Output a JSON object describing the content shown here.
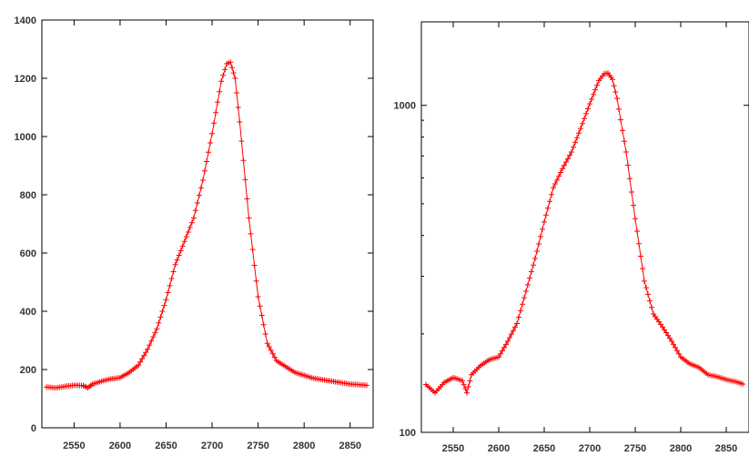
{
  "chart_data": [
    {
      "type": "scatter",
      "marker": "plus",
      "scale_y": "linear",
      "color": "#ff0000",
      "grid": false,
      "xlim": [
        2515,
        2875
      ],
      "ylim": [
        0,
        1400
      ],
      "xticks": [
        2550,
        2600,
        2650,
        2700,
        2750,
        2800,
        2850
      ],
      "xtick_labels": [
        "2550",
        "2600",
        "2650",
        "2700",
        "2750",
        "2800",
        "2850"
      ],
      "yticks": [
        0,
        200,
        400,
        600,
        800,
        1000,
        1200,
        1400
      ],
      "ytick_labels": [
        "0",
        "200",
        "400",
        "600",
        "800",
        "1000",
        "1200",
        "1400"
      ],
      "series": [
        {
          "x": [
            2520,
            2530,
            2540,
            2550,
            2560,
            2565,
            2570,
            2580,
            2590,
            2600,
            2610,
            2620,
            2630,
            2640,
            2650,
            2660,
            2670,
            2680,
            2690,
            2700,
            2710,
            2716,
            2720,
            2725,
            2730,
            2740,
            2750,
            2760,
            2770,
            2780,
            2790,
            2800,
            2810,
            2820,
            2830,
            2840,
            2850,
            2860,
            2870
          ],
          "y": [
            140,
            137,
            142,
            146,
            145,
            137,
            150,
            160,
            168,
            172,
            190,
            215,
            270,
            340,
            440,
            560,
            640,
            720,
            850,
            1010,
            1190,
            1250,
            1255,
            1200,
            1050,
            720,
            450,
            290,
            230,
            210,
            190,
            180,
            170,
            165,
            160,
            155,
            150,
            148,
            145
          ]
        }
      ]
    },
    {
      "type": "scatter",
      "marker": "plus",
      "scale_y": "log",
      "color": "#ff0000",
      "grid": false,
      "xlim": [
        2515,
        2875
      ],
      "ylim": [
        100,
        1800
      ],
      "xticks": [
        2550,
        2600,
        2650,
        2700,
        2750,
        2800,
        2850
      ],
      "xtick_labels": [
        "2550",
        "2600",
        "2650",
        "2700",
        "2750",
        "2800",
        "2850"
      ],
      "yticks": [
        100,
        1000
      ],
      "ytick_labels": [
        "100",
        "1000"
      ],
      "series": [
        {
          "x": [
            2520,
            2530,
            2540,
            2550,
            2560,
            2565,
            2570,
            2580,
            2590,
            2600,
            2610,
            2620,
            2630,
            2640,
            2650,
            2660,
            2670,
            2680,
            2690,
            2700,
            2710,
            2716,
            2720,
            2725,
            2730,
            2740,
            2750,
            2760,
            2770,
            2780,
            2790,
            2800,
            2810,
            2820,
            2830,
            2840,
            2850,
            2860,
            2870
          ],
          "y": [
            140,
            132,
            142,
            147,
            144,
            132,
            150,
            160,
            167,
            170,
            190,
            215,
            270,
            340,
            440,
            560,
            640,
            720,
            850,
            1010,
            1190,
            1250,
            1255,
            1200,
            1050,
            720,
            450,
            290,
            230,
            210,
            190,
            170,
            162,
            158,
            150,
            148,
            145,
            143,
            140
          ]
        }
      ]
    }
  ]
}
